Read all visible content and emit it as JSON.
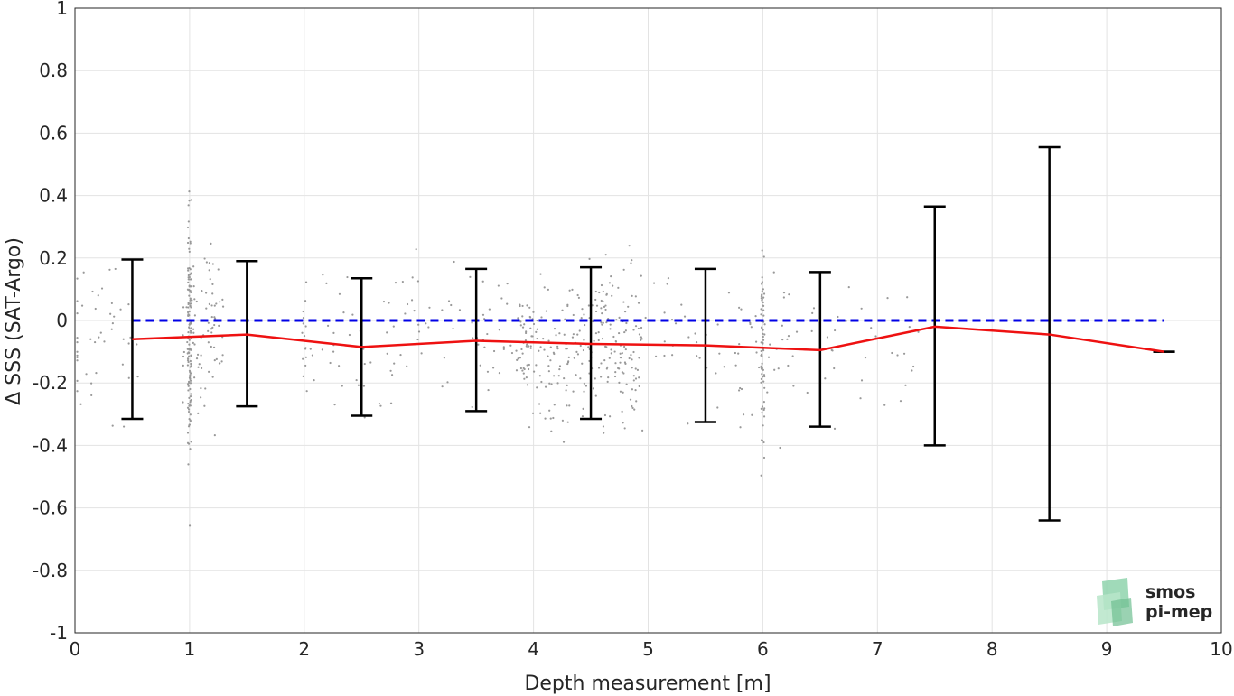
{
  "chart_data": {
    "type": "scatter",
    "xlabel": "Depth measurement [m]",
    "ylabel": "Δ SSS (SAT-Argo)",
    "xlim": [
      0,
      10
    ],
    "ylim": [
      -1,
      1
    ],
    "xticks": [
      "0",
      "1",
      "2",
      "3",
      "4",
      "5",
      "6",
      "7",
      "8",
      "9",
      "10"
    ],
    "yticks": [
      "1",
      "0.8",
      "0.6",
      "0.4",
      "0.2",
      "0",
      "-0.2",
      "-0.4",
      "-0.6",
      "-0.8",
      "-1"
    ],
    "grid": true,
    "reference_line": {
      "y": 0,
      "style": "dashed",
      "color": "#0000e6"
    },
    "series": [
      {
        "type": "line",
        "color": "#ee1111",
        "x": [
          0.5,
          1.5,
          2.5,
          3.5,
          4.5,
          5.5,
          6.5,
          7.5,
          8.5,
          9.5
        ],
        "y": [
          -0.06,
          -0.045,
          -0.085,
          -0.065,
          -0.075,
          -0.08,
          -0.095,
          -0.02,
          -0.045,
          -0.1
        ],
        "ylow": [
          -0.315,
          -0.275,
          -0.305,
          -0.29,
          -0.315,
          -0.325,
          -0.34,
          -0.4,
          -0.64,
          -0.1
        ],
        "yhigh": [
          0.195,
          0.19,
          0.135,
          0.165,
          0.17,
          0.165,
          0.155,
          0.365,
          0.555,
          -0.1
        ]
      }
    ],
    "scatter_points_color": "#999999"
  },
  "logo": {
    "line1": "smos",
    "line2": "pi-mep",
    "color": "#7fc9a0"
  }
}
